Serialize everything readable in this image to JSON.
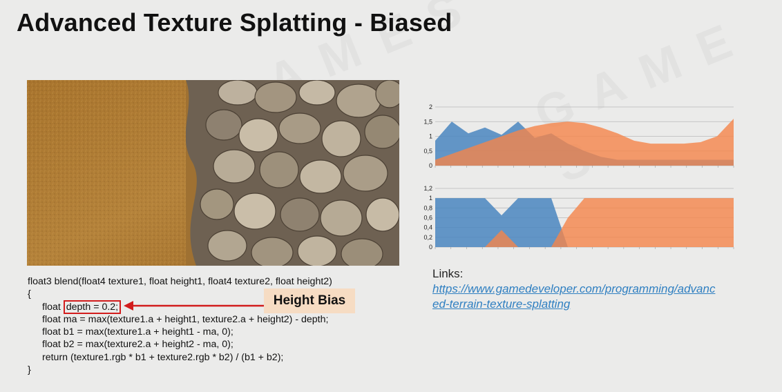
{
  "slide": {
    "title": "Advanced Texture Splatting - Biased",
    "code": {
      "line1": "float3 blend(float4 texture1, float height1, float4 texture2, float height2)",
      "open": "{",
      "line2_prefix": "float ",
      "line2_highlight": "depth = 0.2;",
      "line3": "float ma = max(texture1.a + height1, texture2.a + height2) - depth;",
      "line4": "float b1 = max(texture1.a + height1 - ma, 0);",
      "line5": "float b2 = max(texture2.a + height2 - ma, 0);",
      "line6": "return (texture1.rgb * b1 + texture2.rgb * b2) / (b1 + b2);",
      "close": "}"
    },
    "annotation": {
      "label": "Height Bias",
      "color": "#d21c1c",
      "bg": "#f6dcc3"
    },
    "links": {
      "heading": "Links:",
      "url_line1": "https://www.gamedeveloper.com/programming/advanc",
      "url_line2": "ed-terrain-texture-splatting"
    },
    "colors": {
      "blue": "#4a86c0",
      "orange": "#f5844a",
      "text_link": "#2f7fc1"
    }
  },
  "chart_data": [
    {
      "type": "area",
      "ylim": [
        0,
        2
      ],
      "yticks": [
        "2",
        "1,5",
        "1",
        "0,5",
        "0"
      ],
      "x": [
        0,
        1,
        2,
        3,
        4,
        5,
        6,
        7,
        8,
        9,
        10,
        11,
        12,
        13,
        14,
        15,
        16,
        17,
        18
      ],
      "series": [
        {
          "values": [
            0.85,
            1.5,
            1.1,
            1.3,
            1.05,
            1.5,
            0.95,
            1.1,
            0.75,
            0.5,
            0.3,
            0.2,
            0.2,
            0.2,
            0.2,
            0.2,
            0.2,
            0.2,
            0.2
          ]
        },
        {
          "values": [
            0.2,
            0.4,
            0.6,
            0.8,
            1.0,
            1.2,
            1.35,
            1.45,
            1.5,
            1.45,
            1.3,
            1.1,
            0.85,
            0.75,
            0.75,
            0.75,
            0.8,
            1.0,
            1.6
          ]
        }
      ]
    },
    {
      "type": "area",
      "ylim": [
        0,
        1.2
      ],
      "yticks": [
        "1,2",
        "1",
        "0,8",
        "0,6",
        "0,4",
        "0,2",
        "0"
      ],
      "x": [
        0,
        1,
        2,
        3,
        4,
        5,
        6,
        7,
        8,
        9,
        10,
        11,
        12,
        13,
        14,
        15,
        16,
        17,
        18
      ],
      "series": [
        {
          "values": [
            1,
            1,
            1,
            1,
            0.65,
            1,
            1,
            1,
            0,
            0,
            0,
            0,
            0,
            0,
            0,
            0,
            0,
            0,
            0
          ]
        },
        {
          "values": [
            0,
            0,
            0,
            0,
            0.35,
            0,
            0,
            0,
            0.6,
            1,
            1,
            1,
            1,
            1,
            1,
            1,
            1,
            1,
            1
          ]
        }
      ]
    }
  ]
}
